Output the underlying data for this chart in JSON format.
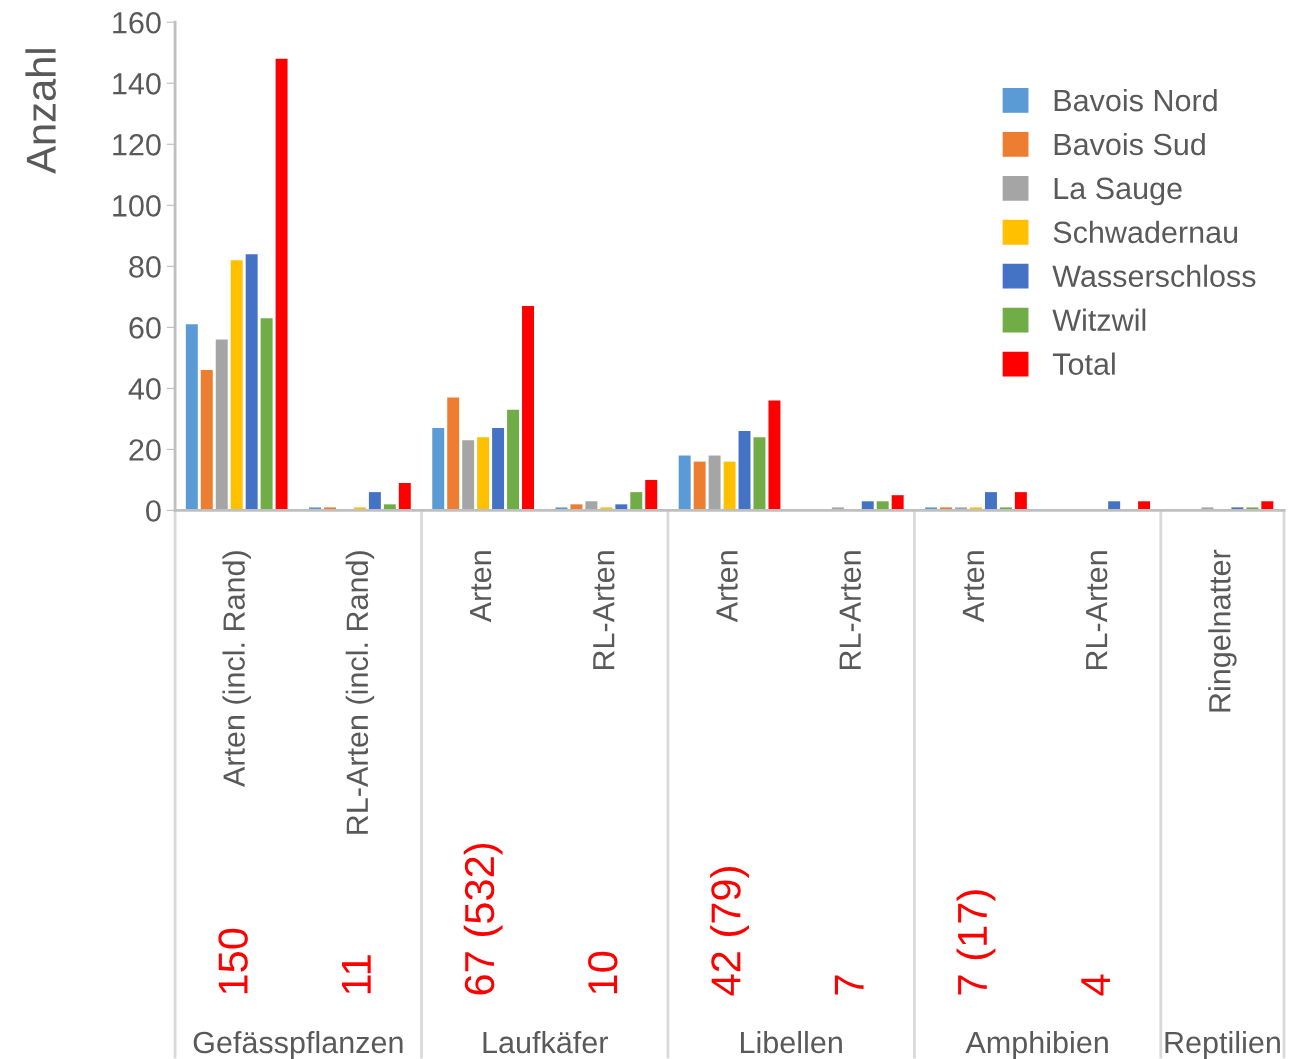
{
  "chart_data": {
    "type": "bar",
    "ylabel": "Anzahl",
    "categories": [
      "Arten (incl. Rand)",
      "RL-Arten (incl. Rand)",
      "Arten",
      "RL-Arten",
      "Arten",
      "RL-Arten",
      "Arten",
      "RL-Arten",
      "Ringelnatter"
    ],
    "series": [
      {
        "name": "Bavois Nord",
        "color": "#5b9bd5",
        "values": [
          61,
          1,
          27,
          1,
          18,
          0,
          1,
          0,
          0
        ]
      },
      {
        "name": "Bavois Sud",
        "color": "#ed7d31",
        "values": [
          46,
          1,
          37,
          2,
          16,
          0,
          1,
          0,
          0
        ]
      },
      {
        "name": "La Sauge",
        "color": "#a5a5a5",
        "values": [
          56,
          0,
          23,
          3,
          18,
          1,
          1,
          0,
          1
        ]
      },
      {
        "name": "Schwadernau",
        "color": "#ffc000",
        "values": [
          82,
          1,
          24,
          1,
          16,
          0,
          1,
          0,
          0
        ]
      },
      {
        "name": "Wasserschloss",
        "color": "#4472c4",
        "values": [
          84,
          6,
          27,
          2,
          26,
          3,
          6,
          3,
          1
        ]
      },
      {
        "name": "Witzwil",
        "color": "#70ad47",
        "values": [
          63,
          2,
          33,
          6,
          24,
          3,
          1,
          0,
          1
        ]
      },
      {
        "name": "Total",
        "color": "#ff0000",
        "values": [
          148,
          9,
          67,
          10,
          36,
          5,
          6,
          3,
          3
        ]
      }
    ],
    "ylim": [
      0,
      160
    ],
    "yticks": [
      0,
      20,
      40,
      60,
      80,
      100,
      120,
      140,
      160
    ],
    "grid": false,
    "legend": "top right",
    "annotations": [
      "150",
      "11",
      "67 (532)",
      "10",
      "42 (79)",
      "7",
      "7 (17)",
      "4",
      "Gefässpflanzen",
      "Laufkäfer",
      "Libellen",
      "Amphibien",
      "Reptilien"
    ]
  }
}
